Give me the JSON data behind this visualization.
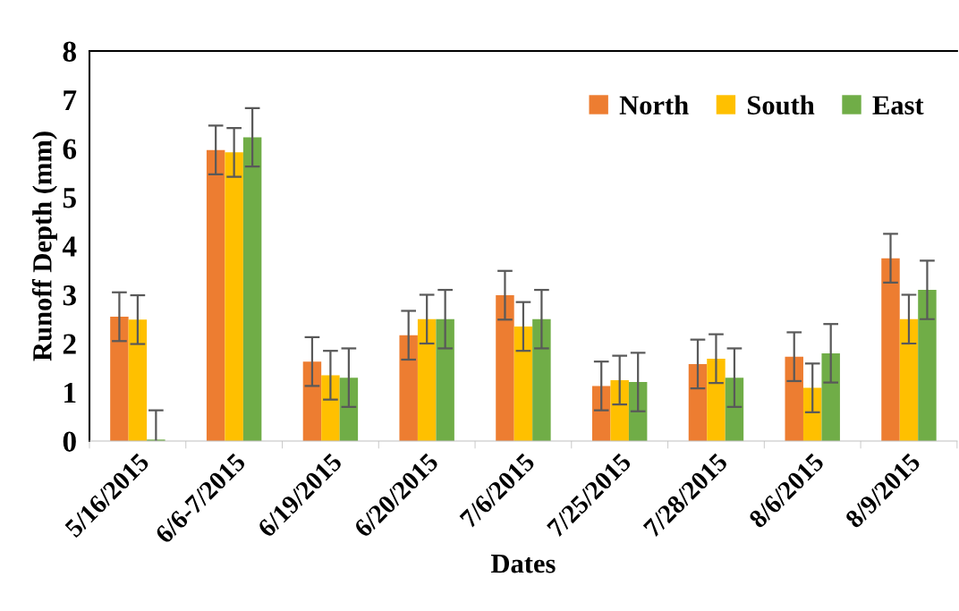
{
  "chart_data": {
    "type": "bar",
    "xlabel": "Dates",
    "ylabel": "Runoff Depth (mm)",
    "categories": [
      "5/16/2015",
      "6/6-7/2015",
      "6/19/2015",
      "6/20/2015",
      "7/6/2015",
      "7/25/2015",
      "7/28/2015",
      "8/6/2015",
      "8/9/2015"
    ],
    "series": [
      {
        "name": "North",
        "color": "#ed7d31",
        "values": [
          2.55,
          5.97,
          1.63,
          2.17,
          2.99,
          1.13,
          1.58,
          1.73,
          3.75
        ],
        "errors": [
          0.5,
          0.5,
          0.5,
          0.5,
          0.5,
          0.5,
          0.5,
          0.5,
          0.5
        ]
      },
      {
        "name": "South",
        "color": "#ffc000",
        "values": [
          2.49,
          5.92,
          1.35,
          2.5,
          2.35,
          1.25,
          1.69,
          1.09,
          2.5
        ],
        "errors": [
          0.5,
          0.5,
          0.5,
          0.5,
          0.5,
          0.5,
          0.5,
          0.5,
          0.5
        ]
      },
      {
        "name": "East",
        "color": "#70ad47",
        "values": [
          0.03,
          6.23,
          1.3,
          2.5,
          2.5,
          1.21,
          1.3,
          1.8,
          3.1
        ],
        "errors": [
          0.6,
          0.6,
          0.6,
          0.6,
          0.6,
          0.6,
          0.6,
          0.6,
          0.6
        ]
      }
    ],
    "ylim": [
      0,
      8
    ],
    "yticks": [
      0,
      1,
      2,
      3,
      4,
      5,
      6,
      7,
      8
    ],
    "grid": false,
    "legend": "top right"
  }
}
